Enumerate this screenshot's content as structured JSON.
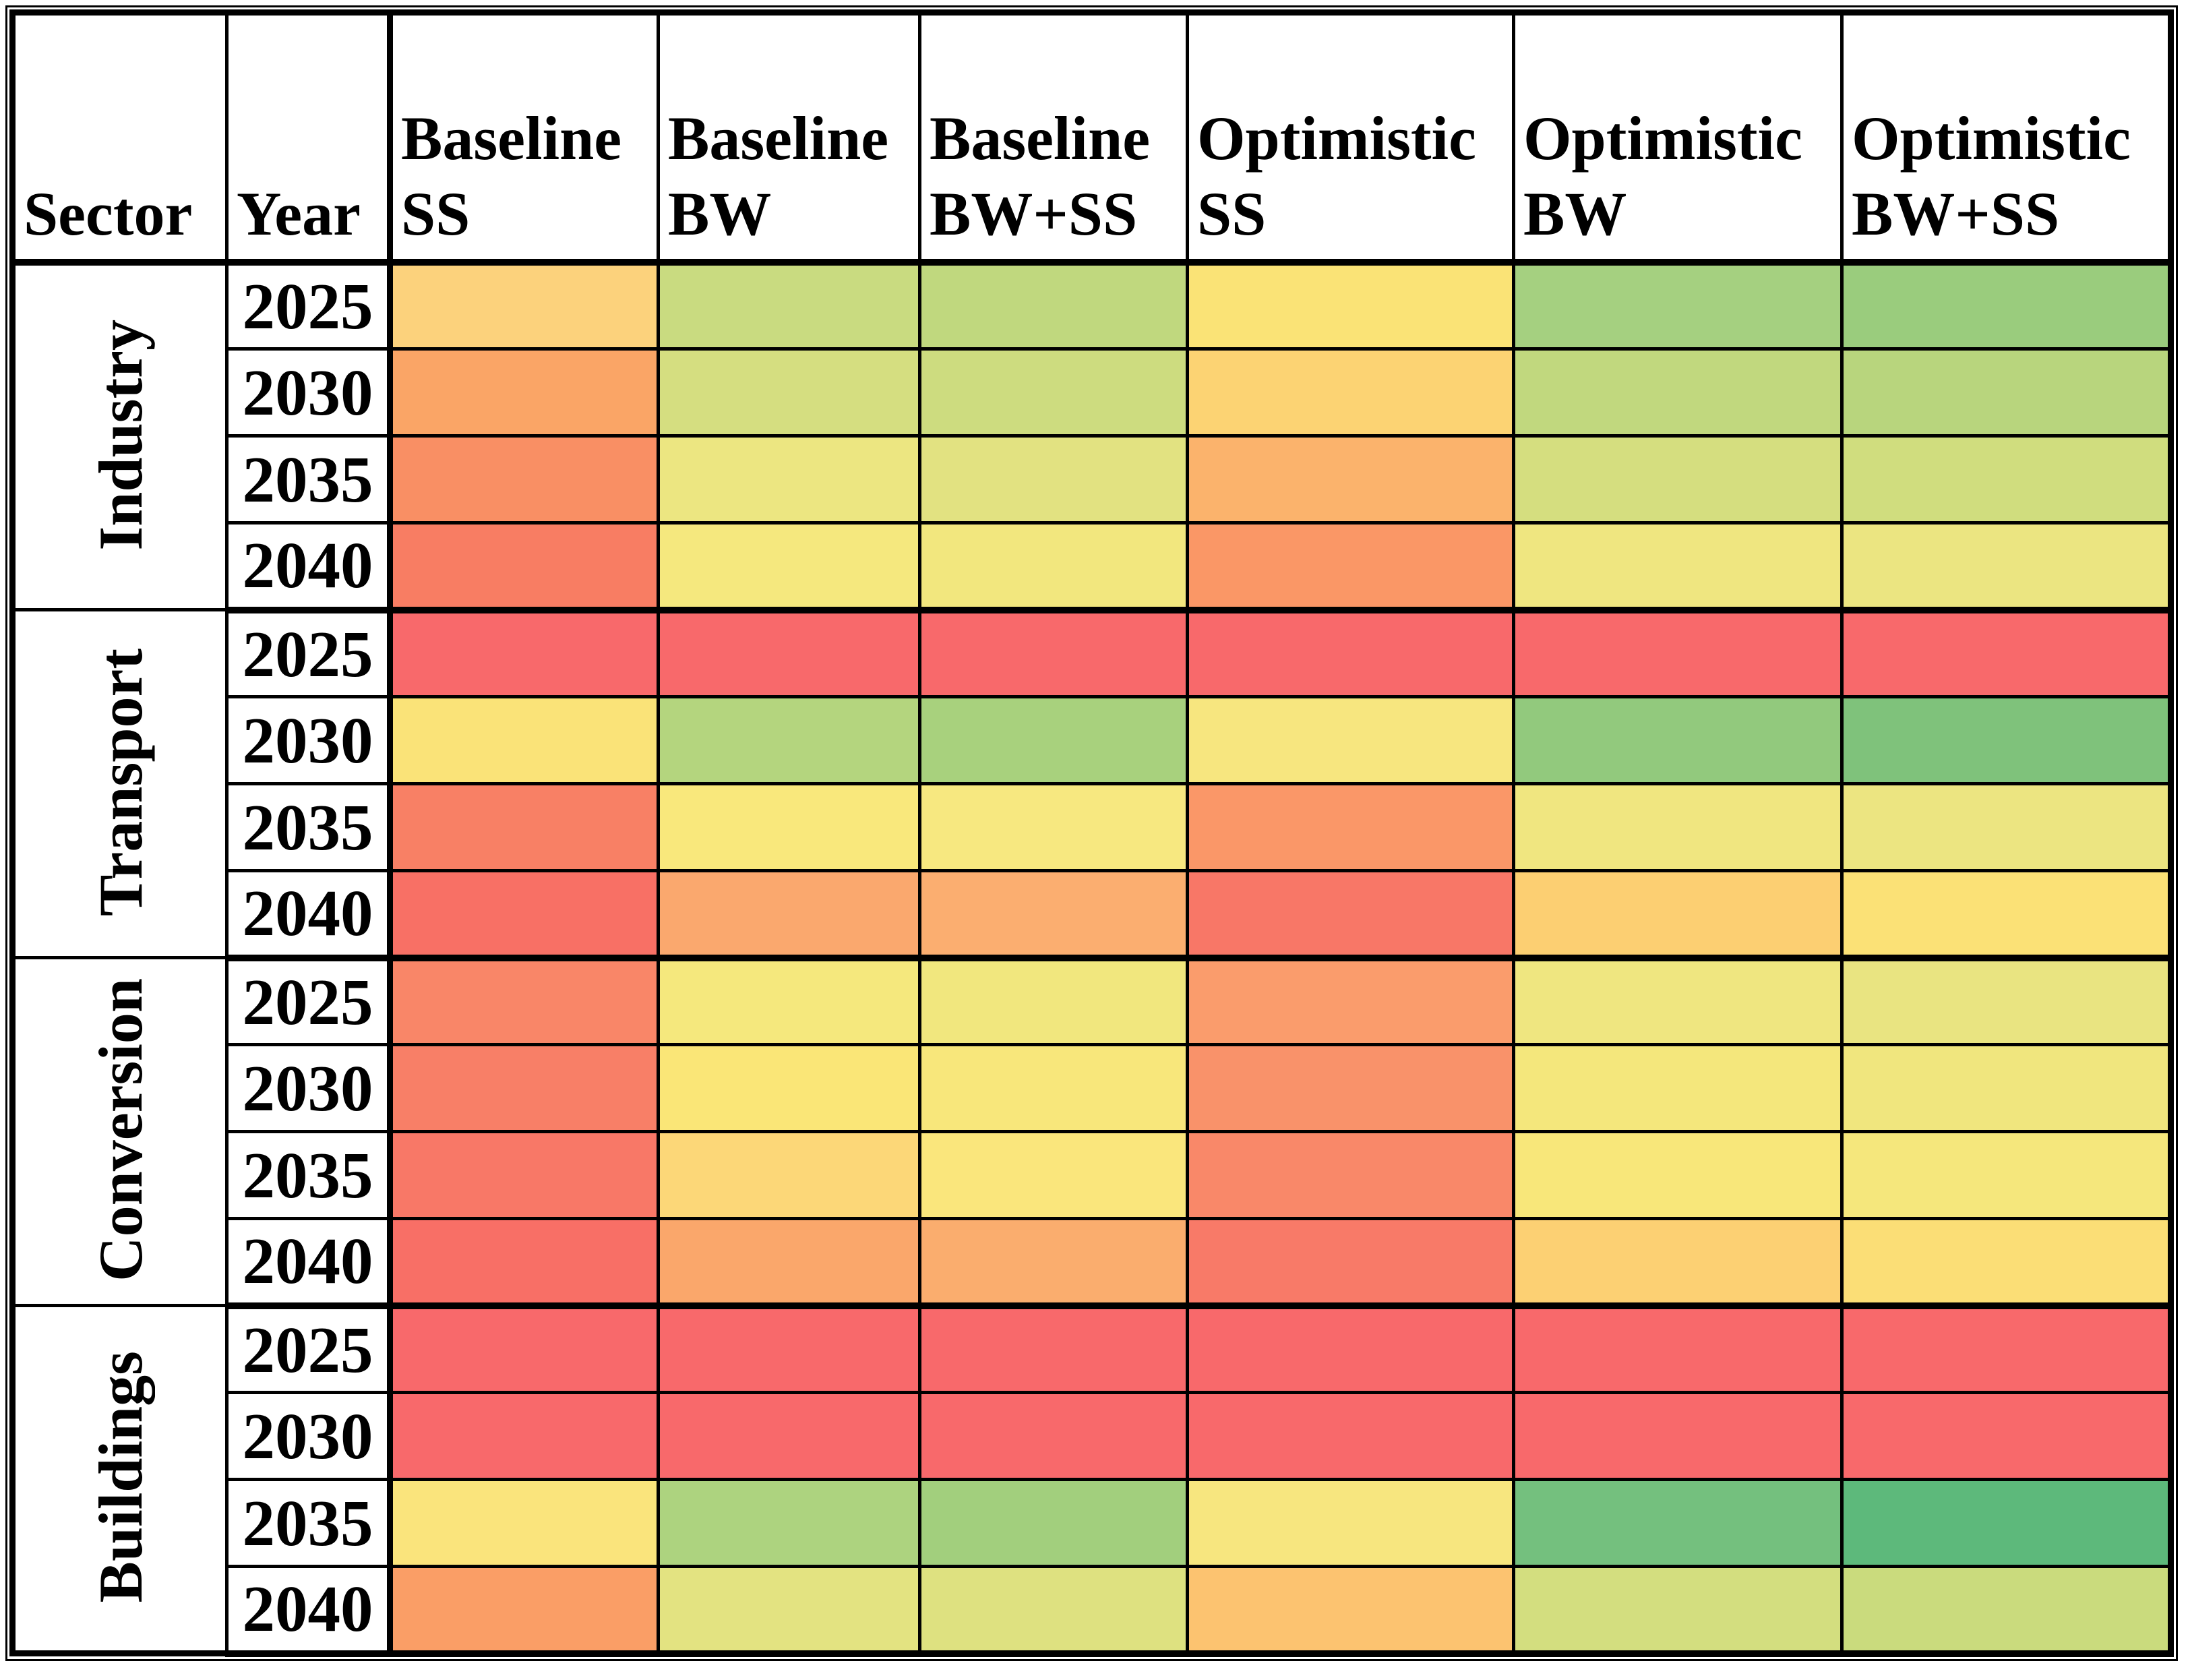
{
  "table": {
    "header": {
      "sector": "Sector",
      "year": "Year",
      "scenarios": [
        {
          "key": "baseline-ss",
          "group": "Baseline",
          "code": "SS"
        },
        {
          "key": "baseline-bw",
          "group": "Baseline",
          "code": "BW"
        },
        {
          "key": "baseline-bwss",
          "group": "Baseline",
          "code": "BW+SS"
        },
        {
          "key": "optimistic-ss",
          "group": "Optimistic",
          "code": "SS"
        },
        {
          "key": "optimistic-bw",
          "group": "Optimistic",
          "code": "BW"
        },
        {
          "key": "optimistic-bwss",
          "group": "Optimistic",
          "code": "BW+SS"
        }
      ]
    },
    "sectors": [
      {
        "name": "Industry",
        "rows": [
          {
            "year": "2025",
            "cells": [
              "#FCD27C",
              "#C9DB80",
              "#C0D87E",
              "#FAE376",
              "#A5D080",
              "#9ACC7D"
            ]
          },
          {
            "year": "2030",
            "cells": [
              "#FAA566",
              "#D5DE80",
              "#CDDC7F",
              "#FCD373",
              "#C1D87E",
              "#B8D57D"
            ]
          },
          {
            "year": "2035",
            "cells": [
              "#F98F64",
              "#ECE681",
              "#E2E281",
              "#FBB36C",
              "#D5DE7F",
              "#D0DD7E"
            ]
          },
          {
            "year": "2040",
            "cells": [
              "#F87D63",
              "#F5E87E",
              "#F2E77E",
              "#FA9766",
              "#EFE680",
              "#EBE581"
            ]
          }
        ]
      },
      {
        "name": "Transport",
        "rows": [
          {
            "year": "2025",
            "cells": [
              "#F8696B",
              "#F8696B",
              "#F8696B",
              "#F8696B",
              "#F8696B",
              "#F8696B"
            ]
          },
          {
            "year": "2030",
            "cells": [
              "#FAE378",
              "#B4D57E",
              "#A8D17D",
              "#F7E67F",
              "#92C97D",
              "#7FC27B"
            ]
          },
          {
            "year": "2035",
            "cells": [
              "#F88065",
              "#F9E87C",
              "#F7E880",
              "#FA9768",
              "#F0E680",
              "#ECE581"
            ]
          },
          {
            "year": "2040",
            "cells": [
              "#F87065",
              "#FAA86E",
              "#FBAE70",
              "#F87767",
              "#FCCF72",
              "#FBE176"
            ]
          }
        ]
      },
      {
        "name": "Conversion",
        "rows": [
          {
            "year": "2025",
            "cells": [
              "#F98668",
              "#F5E87D",
              "#F1E77E",
              "#FA9C6C",
              "#EFE680",
              "#E9E481"
            ]
          },
          {
            "year": "2030",
            "cells": [
              "#F87F67",
              "#FAE677",
              "#F8E77B",
              "#F9926A",
              "#F4E77C",
              "#F0E67E"
            ]
          },
          {
            "year": "2035",
            "cells": [
              "#F87867",
              "#FCD778",
              "#FAE67C",
              "#F98869",
              "#F8E77A",
              "#F5E77C"
            ]
          },
          {
            "year": "2040",
            "cells": [
              "#F86F66",
              "#FAA76B",
              "#FAAD6E",
              "#F87A68",
              "#FCD073",
              "#FBDE76"
            ]
          }
        ]
      },
      {
        "name": "Buildings",
        "rows": [
          {
            "year": "2025",
            "cells": [
              "#F8696B",
              "#F8696B",
              "#F8696B",
              "#F8696B",
              "#F8696B",
              "#F8696B"
            ]
          },
          {
            "year": "2030",
            "cells": [
              "#F8696B",
              "#F8696B",
              "#F8696B",
              "#F8696B",
              "#F8696B",
              "#F8696B"
            ]
          },
          {
            "year": "2035",
            "cells": [
              "#FAE47C",
              "#ADD37F",
              "#A2CF7D",
              "#F7E67F",
              "#74C07E",
              "#5DB97B"
            ]
          },
          {
            "year": "2040",
            "cells": [
              "#FA9E66",
              "#E3E381",
              "#DEE180",
              "#FCC370",
              "#D3DE7F",
              "#CADB7D"
            ]
          }
        ]
      }
    ]
  },
  "chart_data": {
    "type": "heatmap",
    "title": "",
    "columns": [
      "Baseline SS",
      "Baseline BW",
      "Baseline BW+SS",
      "Optimistic SS",
      "Optimistic BW",
      "Optimistic BW+SS"
    ],
    "row_groups": [
      "Industry",
      "Transport",
      "Conversion",
      "Buildings"
    ],
    "years_per_group": [
      "2025",
      "2030",
      "2035",
      "2040"
    ],
    "encoding": "cell color on red-to-yellow-to-green scale",
    "color_scale_anchors": {
      "min_color": "#F8696B",
      "max_color": "#5DB97B"
    },
    "cell_colors": [
      [
        "#FCD27C",
        "#C9DB80",
        "#C0D87E",
        "#FAE376",
        "#A5D080",
        "#9ACC7D"
      ],
      [
        "#FAA566",
        "#D5DE80",
        "#CDDC7F",
        "#FCD373",
        "#C1D87E",
        "#B8D57D"
      ],
      [
        "#F98F64",
        "#ECE681",
        "#E2E281",
        "#FBB36C",
        "#D5DE7F",
        "#D0DD7E"
      ],
      [
        "#F87D63",
        "#F5E87E",
        "#F2E77E",
        "#FA9766",
        "#EFE680",
        "#EBE581"
      ],
      [
        "#F8696B",
        "#F8696B",
        "#F8696B",
        "#F8696B",
        "#F8696B",
        "#F8696B"
      ],
      [
        "#FAE378",
        "#B4D57E",
        "#A8D17D",
        "#F7E67F",
        "#92C97D",
        "#7FC27B"
      ],
      [
        "#F88065",
        "#F9E87C",
        "#F7E880",
        "#FA9768",
        "#F0E680",
        "#ECE581"
      ],
      [
        "#F87065",
        "#FAA86E",
        "#FBAE70",
        "#F87767",
        "#FCCF72",
        "#FBE176"
      ],
      [
        "#F98668",
        "#F5E87D",
        "#F1E77E",
        "#FA9C6C",
        "#EFE680",
        "#E9E481"
      ],
      [
        "#F87F67",
        "#FAE677",
        "#F8E77B",
        "#F9926A",
        "#F4E77C",
        "#F0E67E"
      ],
      [
        "#F87867",
        "#FCD778",
        "#FAE67C",
        "#F98869",
        "#F8E77A",
        "#F5E77C"
      ],
      [
        "#F86F66",
        "#FAA76B",
        "#FAAD6E",
        "#F87A68",
        "#FCD073",
        "#FBDE76"
      ],
      [
        "#F8696B",
        "#F8696B",
        "#F8696B",
        "#F8696B",
        "#F8696B",
        "#F8696B"
      ],
      [
        "#F8696B",
        "#F8696B",
        "#F8696B",
        "#F8696B",
        "#F8696B",
        "#F8696B"
      ],
      [
        "#FAE47C",
        "#ADD37F",
        "#A2CF7D",
        "#F7E67F",
        "#74C07E",
        "#5DB97B"
      ],
      [
        "#FA9E66",
        "#E3E381",
        "#DEE180",
        "#FCC370",
        "#D3DE7F",
        "#CADB7D"
      ]
    ]
  }
}
